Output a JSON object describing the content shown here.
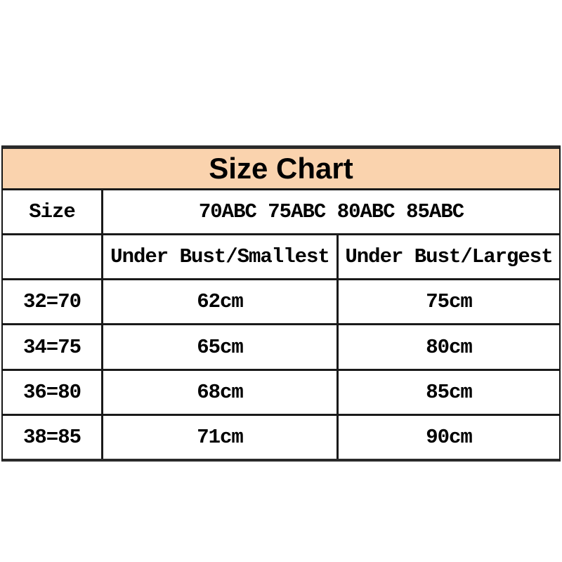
{
  "title": "Size Chart",
  "colors": {
    "header_bg": "#FAD3AE",
    "grid_border": "#1A1A1A",
    "text": "#000000"
  },
  "size_header": {
    "label": "Size",
    "sizes": "70ABC 75ABC 80ABC 85ABC"
  },
  "measure_header": {
    "col1": "",
    "col2": "Under Bust/Smallest",
    "col3": "Under Bust/Largest"
  },
  "rows": [
    {
      "size": "32=70",
      "under_bust_smallest": "62cm",
      "under_bust_largest": "75cm"
    },
    {
      "size": "34=75",
      "under_bust_smallest": "65cm",
      "under_bust_largest": "80cm"
    },
    {
      "size": "36=80",
      "under_bust_smallest": "68cm",
      "under_bust_largest": "85cm"
    },
    {
      "size": "38=85",
      "under_bust_smallest": "71cm",
      "under_bust_largest": "90cm"
    }
  ]
}
